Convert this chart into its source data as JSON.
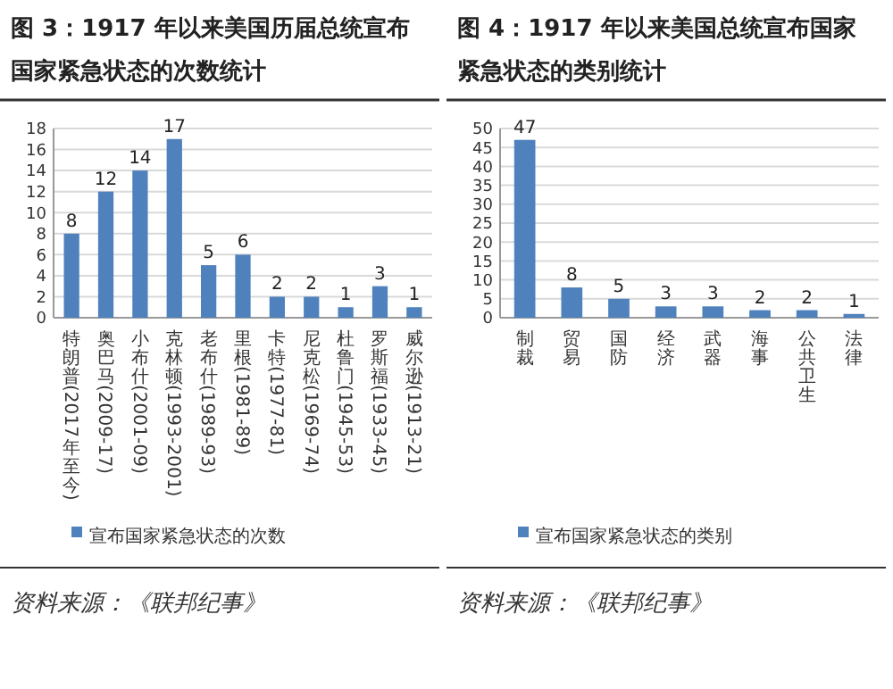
{
  "chart_data": [
    {
      "type": "bar",
      "title": "图 3：1917 年以来美国历届总统宣布国家紧急状态的次数统计",
      "categories": [
        "特朗普(2017年至今)",
        "奥巴马(2009-17)",
        "小布什(2001-09)",
        "克林顿(1993-2001)",
        "老布什(1989-93)",
        "里根(1981-89)",
        "卡特(1977-81)",
        "尼克松(1969-74)",
        "杜鲁门(1945-53)",
        "罗斯福(1933-45)",
        "威尔逊(1913-21)"
      ],
      "series": [
        {
          "name": "宣布国家紧急状态的次数",
          "color": "#4f81bd",
          "values": [
            8,
            12,
            14,
            17,
            5,
            6,
            2,
            2,
            1,
            3,
            1
          ]
        }
      ],
      "ylim": [
        0,
        18
      ],
      "yticks": [
        0,
        2,
        4,
        6,
        8,
        10,
        12,
        14,
        16,
        18
      ],
      "grid": "y",
      "legend": "bottom",
      "data_labels": true,
      "annotations": [
        "资料来源：《联邦纪事》"
      ]
    },
    {
      "type": "bar",
      "title": "图 4：1917 年以来美国总统宣布国家紧急状态的类别统计",
      "categories": [
        "制裁",
        "贸易",
        "国防",
        "经济",
        "武器",
        "海事",
        "公共卫生",
        "法律"
      ],
      "series": [
        {
          "name": "宣布国家紧急状态的类别",
          "color": "#4f81bd",
          "values": [
            47,
            8,
            5,
            3,
            3,
            2,
            2,
            1
          ]
        }
      ],
      "ylim": [
        0,
        50
      ],
      "yticks": [
        0,
        5,
        10,
        15,
        20,
        25,
        30,
        35,
        40,
        45,
        50
      ],
      "grid": "y",
      "legend": "bottom",
      "data_labels": true,
      "annotations": [
        "资料来源：《联邦纪事》"
      ]
    }
  ]
}
